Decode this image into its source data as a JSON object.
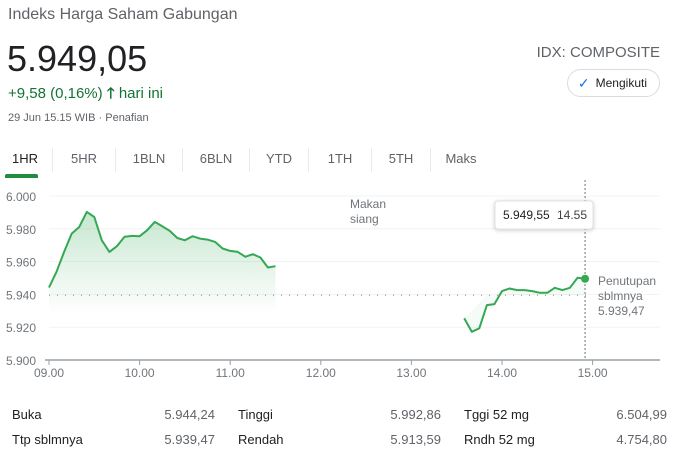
{
  "header": {
    "title": "Indeks Harga Saham Gabungan",
    "price": "5.949,05",
    "change": "+9,58 (0,16%)",
    "change_arrow_icon": "arrow-up-icon",
    "change_suffix": "hari ini",
    "timestamp": "29 Jun 15.15 WIB",
    "disclaimer": "· Penafian",
    "ticker": "IDX: COMPOSITE",
    "follow_label": "Mengikuti",
    "follow_icon": "check-icon"
  },
  "colors": {
    "up": "#137333",
    "line": "#34a853",
    "accent": "#1a73e8"
  },
  "tabs": [
    {
      "label": "1HR",
      "selected": true
    },
    {
      "label": "5HR"
    },
    {
      "label": "1BLN"
    },
    {
      "label": "6BLN"
    },
    {
      "label": "YTD"
    },
    {
      "label": "1TH"
    },
    {
      "label": "5TH"
    },
    {
      "label": "Maks"
    }
  ],
  "chart_data": {
    "type": "area",
    "y_ticks": [
      "6.000",
      "5.980",
      "5.960",
      "5.940",
      "5.920",
      "5.900"
    ],
    "y_tick_values": [
      6000,
      5980,
      5960,
      5940,
      5920,
      5900
    ],
    "x_ticks": [
      "09.00",
      "10.00",
      "11.00",
      "12.00",
      "13.00",
      "14.00",
      "15.00"
    ],
    "ylim": [
      5900,
      6000
    ],
    "grid": true,
    "lunch_label": [
      "Makan",
      "siang"
    ],
    "previous_close": {
      "label": [
        "Penutupan",
        "sblmnya"
      ],
      "value": 5939.47,
      "value_label": "5.939,47"
    },
    "tooltip": {
      "value": "5.949,55",
      "time": "14.55"
    },
    "series": [
      {
        "segment": "morning",
        "x": [
          "09.00",
          "09.05",
          "09.10",
          "09.15",
          "09.20",
          "09.25",
          "09.30",
          "09.35",
          "09.40",
          "09.45",
          "09.50",
          "09.55",
          "10.00",
          "10.05",
          "10.10",
          "10.15",
          "10.20",
          "10.25",
          "10.30",
          "10.35",
          "10.40",
          "10.45",
          "10.50",
          "10.55",
          "11.00",
          "11.05",
          "11.10",
          "11.15",
          "11.20",
          "11.25",
          "11.30"
        ],
        "values": [
          5944.2,
          5953.8,
          5965.9,
          5977.1,
          5981.1,
          5990.3,
          5987.2,
          5973.0,
          5965.9,
          5969.4,
          5975.1,
          5975.7,
          5975.5,
          5979.1,
          5984.2,
          5981.5,
          5978.7,
          5974.4,
          5973.0,
          5975.5,
          5974.0,
          5973.4,
          5972.0,
          5968.0,
          5966.5,
          5965.9,
          5962.9,
          5964.5,
          5962.5,
          5956.4,
          5957.2
        ]
      },
      {
        "segment": "afternoon",
        "x": [
          "13.35",
          "13.40",
          "13.45",
          "13.50",
          "13.55",
          "14.00",
          "14.05",
          "14.10",
          "14.15",
          "14.20",
          "14.25",
          "14.30",
          "14.35",
          "14.40",
          "14.45",
          "14.50",
          "14.55"
        ],
        "values": [
          5925.4,
          5917.2,
          5919.3,
          5933.5,
          5934.1,
          5942.0,
          5943.6,
          5942.6,
          5942.6,
          5942.0,
          5941.0,
          5941.0,
          5944.0,
          5942.6,
          5944.0,
          5950.1,
          5949.55
        ]
      }
    ]
  },
  "stats": [
    [
      {
        "label": "Buka",
        "value": "5.944,24"
      },
      {
        "label": "Tinggi",
        "value": "5.992,86"
      },
      {
        "label": "Tggi 52 mg",
        "value": "6.504,99"
      }
    ],
    [
      {
        "label": "Ttp sblmnya",
        "value": "5.939,47"
      },
      {
        "label": "Rendah",
        "value": "5.913,59"
      },
      {
        "label": "Rndh 52 mg",
        "value": "4.754,80"
      }
    ]
  ]
}
